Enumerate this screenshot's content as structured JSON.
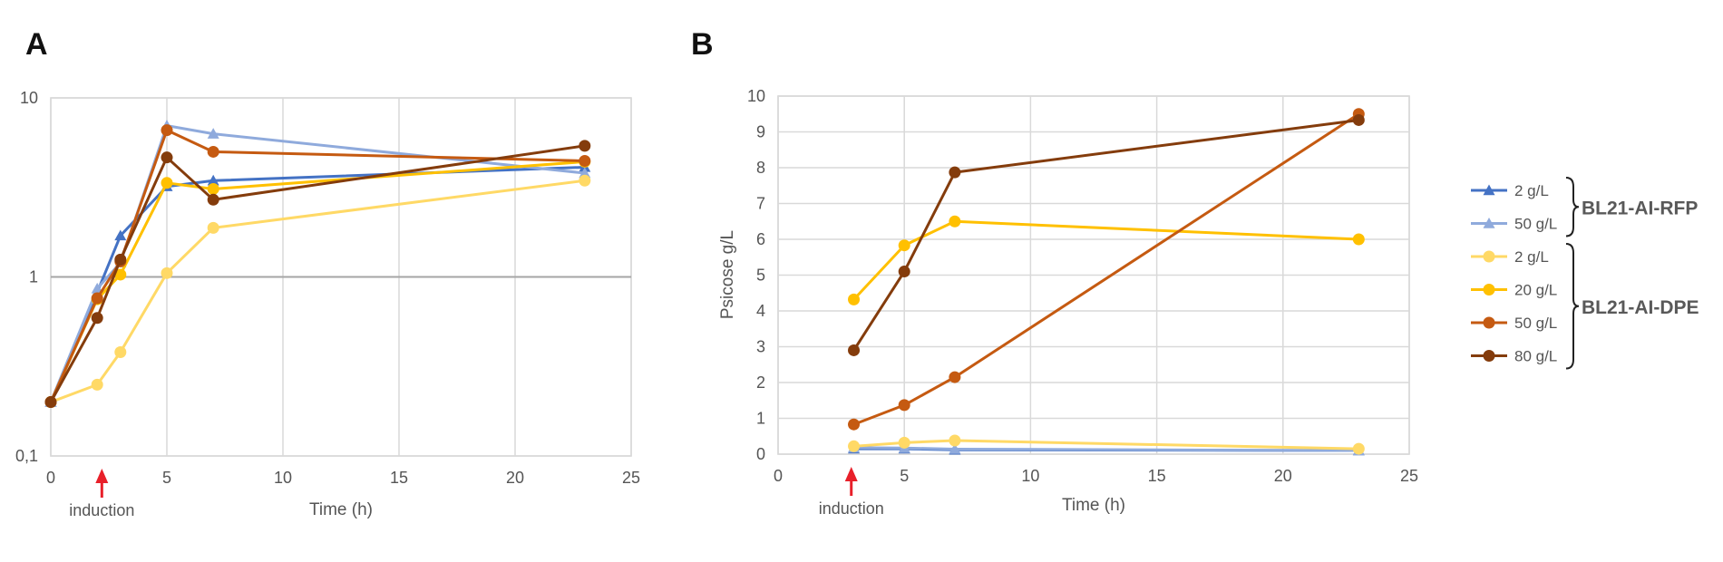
{
  "panels": {
    "a": {
      "letter": "A"
    },
    "b": {
      "letter": "B"
    }
  },
  "legend": {
    "entries": [
      {
        "label": "2 g/L",
        "color": "#4472C4",
        "marker": "triangle"
      },
      {
        "label": "50 g/L",
        "color": "#8FAADC",
        "marker": "triangle"
      },
      {
        "label": "2 g/L",
        "color": "#FFD966",
        "marker": "circle"
      },
      {
        "label": "20 g/L",
        "color": "#FFC000",
        "marker": "circle"
      },
      {
        "label": "50 g/L",
        "color": "#C55A11",
        "marker": "circle"
      },
      {
        "label": "80 g/L",
        "color": "#843C0C",
        "marker": "circle"
      }
    ],
    "groups": [
      {
        "label": "BL21-AI-RFP",
        "members": [
          0,
          1
        ]
      },
      {
        "label": "BL21-AI-DPE",
        "members": [
          2,
          3,
          4,
          5
        ]
      }
    ]
  },
  "annotations": {
    "induction_label": "induction",
    "induction_arrow_color": "#E8202A"
  },
  "chart_data": [
    {
      "type": "line",
      "panel": "A",
      "xlabel": "Time (h)",
      "ylabel": "",
      "xlim": [
        0,
        25
      ],
      "ylim": [
        0.1,
        10
      ],
      "yscale": "log",
      "xticks": [
        "0",
        "5",
        "10",
        "15",
        "20",
        "25"
      ],
      "yticks": [
        "0,1",
        "1",
        "10"
      ],
      "grid": true,
      "induction_time": 2.2,
      "series": [
        {
          "name": "2 g/L",
          "group": "BL21-AI-RFP",
          "x": [
            0,
            2,
            3,
            5,
            7,
            23
          ],
          "y": [
            0.2,
            0.82,
            1.7,
            3.2,
            3.45,
            4.1
          ]
        },
        {
          "name": "50 g/L",
          "group": "BL21-AI-RFP",
          "x": [
            0,
            2,
            3,
            5,
            7,
            23
          ],
          "y": [
            0.2,
            0.86,
            1.2,
            7.0,
            6.3,
            3.8
          ]
        },
        {
          "name": "2 g/L",
          "group": "BL21-AI-DPE",
          "x": [
            0,
            2,
            3,
            5,
            7,
            23
          ],
          "y": [
            0.2,
            0.25,
            0.38,
            1.05,
            1.88,
            3.45
          ]
        },
        {
          "name": "20 g/L",
          "group": "BL21-AI-DPE",
          "x": [
            0,
            2,
            3,
            5,
            7,
            23
          ],
          "y": [
            0.2,
            0.75,
            1.03,
            3.35,
            3.1,
            4.4
          ]
        },
        {
          "name": "50 g/L",
          "group": "BL21-AI-DPE",
          "x": [
            0,
            2,
            3,
            5,
            7,
            23
          ],
          "y": [
            0.2,
            0.76,
            1.22,
            6.6,
            5.0,
            4.45
          ]
        },
        {
          "name": "80 g/L",
          "group": "BL21-AI-DPE",
          "x": [
            0,
            2,
            3,
            5,
            7,
            23
          ],
          "y": [
            0.2,
            0.59,
            1.25,
            4.65,
            2.7,
            5.4
          ]
        }
      ]
    },
    {
      "type": "line",
      "panel": "B",
      "xlabel": "Time (h)",
      "ylabel": "Psicose g/L",
      "xlim": [
        0,
        25
      ],
      "ylim": [
        0,
        10
      ],
      "yscale": "linear",
      "xticks": [
        "0",
        "5",
        "10",
        "15",
        "20",
        "25"
      ],
      "yticks": [
        "0",
        "1",
        "2",
        "3",
        "4",
        "5",
        "6",
        "7",
        "8",
        "9",
        "10"
      ],
      "grid": true,
      "induction_time": 2.9,
      "series": [
        {
          "name": "2 g/L",
          "group": "BL21-AI-RFP",
          "x": [
            3,
            5,
            7,
            23
          ],
          "y": [
            0.15,
            0.15,
            0.12,
            0.1
          ]
        },
        {
          "name": "50 g/L",
          "group": "BL21-AI-RFP",
          "x": [
            3,
            5,
            7,
            23
          ],
          "y": [
            0.18,
            0.17,
            0.14,
            0.1
          ]
        },
        {
          "name": "2 g/L",
          "group": "BL21-AI-DPE",
          "x": [
            3,
            5,
            7,
            23
          ],
          "y": [
            0.22,
            0.32,
            0.38,
            0.15
          ]
        },
        {
          "name": "20 g/L",
          "group": "BL21-AI-DPE",
          "x": [
            3,
            5,
            7,
            23
          ],
          "y": [
            4.32,
            5.83,
            6.5,
            6.0
          ]
        },
        {
          "name": "50 g/L",
          "group": "BL21-AI-DPE",
          "x": [
            3,
            5,
            7,
            23
          ],
          "y": [
            0.83,
            1.37,
            2.15,
            9.5
          ]
        },
        {
          "name": "80 g/L",
          "group": "BL21-AI-DPE",
          "x": [
            3,
            5,
            7,
            23
          ],
          "y": [
            2.9,
            5.1,
            7.87,
            9.33
          ]
        }
      ]
    }
  ]
}
